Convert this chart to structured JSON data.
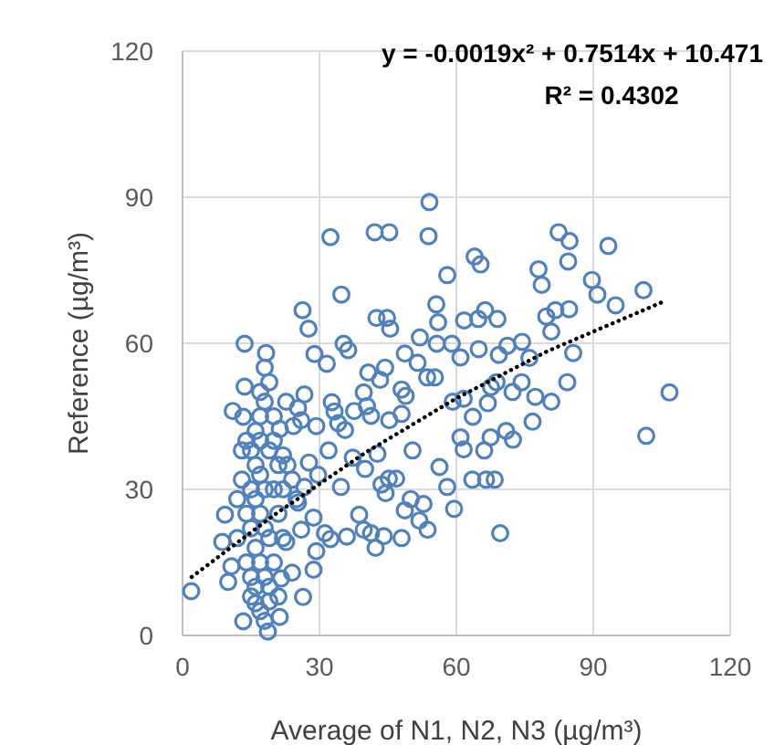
{
  "chart_data": {
    "type": "scatter",
    "xlabel": "Average of N1, N2, N3 (µg/m³)",
    "ylabel": "Reference (µg/m³)",
    "annotations": [
      "y = -0.0019x² + 0.7514x + 10.471",
      "R² = 0.4302"
    ],
    "xlim": [
      0,
      120
    ],
    "ylim": [
      0,
      120
    ],
    "xticks": [
      0,
      30,
      60,
      90,
      120
    ],
    "yticks": [
      0,
      30,
      60,
      90,
      120
    ],
    "grid": true,
    "marker": "circle",
    "series": [
      {
        "color": "#4f81bd",
        "x": [
          1.9,
          106.7,
          101.6,
          101,
          93.3,
          94.9,
          89.7,
          90.9,
          82.4,
          84.8,
          84.5,
          78,
          78.7,
          84.7,
          85.6,
          84.3,
          80.8,
          77.3,
          76.7,
          76,
          79.7,
          81.7,
          80.8,
          74.4,
          74.3,
          72.3,
          72.4,
          70.9,
          71.2,
          69.3,
          69,
          66.3,
          64.8,
          61.7,
          65.3,
          64,
          58,
          54.1,
          53.9,
          42.1,
          45.3,
          32.4,
          34.8,
          26.3,
          27.6,
          13.6,
          18.3,
          28.9,
          31.6,
          35.3,
          36.3,
          42.5,
          44.8,
          45.5,
          48.7,
          52,
          55.6,
          56,
          55.7,
          59,
          60.9,
          64.9,
          53.6,
          55.3,
          51.5,
          40.7,
          43.3,
          44.4,
          59.2,
          61.6,
          63.6,
          60.9,
          61.6,
          66.1,
          67.5,
          66.9,
          67.6,
          68.8,
          63.5,
          66.5,
          68.4,
          69.6,
          56.3,
          58,
          59.5,
          53.7,
          52.8,
          51.9,
          48,
          42.3,
          44.1,
          41.3,
          39.7,
          38.7,
          48.7,
          50,
          50.4,
          46.8,
          45.2,
          44.5,
          43.6,
          36,
          32.4,
          37.3,
          40,
          42.7,
          45.3,
          48,
          41.3,
          48,
          48.9,
          40.4,
          39.7,
          22.7,
          25.3,
          26.7,
          32.7,
          33.3,
          34.1,
          35.6,
          37.6,
          29.3,
          26,
          24.3,
          21.3,
          32,
          27.7,
          29.7,
          34.7,
          26.7,
          25.3,
          28.7,
          31.2,
          26,
          22.7,
          29.3,
          28.7,
          24,
          26.4,
          21.6,
          21.3,
          9.3,
          8.7,
          10.7,
          10,
          13.3,
          13.6,
          11,
          13.3,
          18.7,
          16,
          15,
          16,
          17,
          18,
          15,
          16,
          17,
          18,
          19,
          15,
          16,
          17,
          18,
          19,
          14,
          14,
          13,
          13,
          14,
          16,
          17,
          18,
          19,
          18,
          17,
          20,
          21,
          20,
          21,
          22,
          20,
          19,
          17,
          16,
          15,
          22,
          23,
          24,
          25,
          22,
          12,
          12,
          17,
          19,
          20,
          18,
          15,
          21
        ],
        "values": [
          9.1,
          49.9,
          41,
          70.9,
          80,
          67.8,
          73,
          70,
          82.8,
          81,
          76.8,
          75.2,
          72,
          67,
          58,
          52,
          48,
          49,
          43.9,
          57,
          65.5,
          66.8,
          62.4,
          60.3,
          52,
          50,
          40.2,
          42,
          59.5,
          57.6,
          65,
          66.8,
          65,
          64.7,
          76.2,
          77.8,
          74,
          89,
          82,
          82.8,
          82.8,
          81.8,
          70,
          66.8,
          63,
          59.9,
          58,
          57.8,
          55.8,
          59.9,
          58.6,
          65.2,
          65.2,
          63,
          57.9,
          61.2,
          68,
          64.3,
          59.9,
          59.9,
          57.1,
          58.8,
          53,
          53,
          56,
          54,
          52.5,
          55,
          48,
          48.6,
          44.9,
          40.7,
          38.2,
          38,
          40.7,
          47.7,
          51,
          52,
          32,
          32,
          32,
          21,
          34.6,
          30.5,
          26,
          21.7,
          27,
          23.6,
          20,
          18,
          20.4,
          21,
          21.7,
          24.8,
          25.7,
          28,
          38,
          32.2,
          32.2,
          29.2,
          31,
          20.3,
          19.8,
          36.5,
          34.2,
          37.3,
          44.2,
          45.5,
          45.1,
          50.5,
          49.2,
          47.1,
          49.9,
          48,
          46.7,
          49.5,
          47.9,
          46,
          43.6,
          42.2,
          46.1,
          43,
          44.2,
          43,
          42.4,
          38,
          35.5,
          33,
          30.5,
          30.5,
          27.3,
          24.2,
          21,
          21.7,
          19.2,
          17.3,
          13.5,
          12.9,
          7.9,
          11.7,
          3.8,
          24.8,
          19.2,
          14.2,
          11,
          44.9,
          51.1,
          46.1,
          2.9,
          0.8,
          6.6,
          38,
          35,
          33,
          30,
          30,
          28,
          25,
          22,
          20,
          22,
          18,
          15,
          12,
          10,
          15,
          25,
          32,
          38,
          40,
          42,
          45,
          48,
          52,
          55,
          50,
          40,
          35,
          30,
          25,
          20,
          15,
          7,
          5,
          10,
          12,
          30,
          35,
          32,
          28,
          37,
          20,
          28,
          40,
          38,
          45,
          3,
          8,
          8
        ]
      },
      {
        "type": "line",
        "color": "#000000",
        "line_style": "dotted",
        "marker": "none",
        "x": [
          2,
          20,
          40,
          60,
          80,
          106
        ],
        "values": [
          12,
          24.7,
          37.5,
          48.7,
          58.4,
          68.8
        ]
      }
    ]
  }
}
